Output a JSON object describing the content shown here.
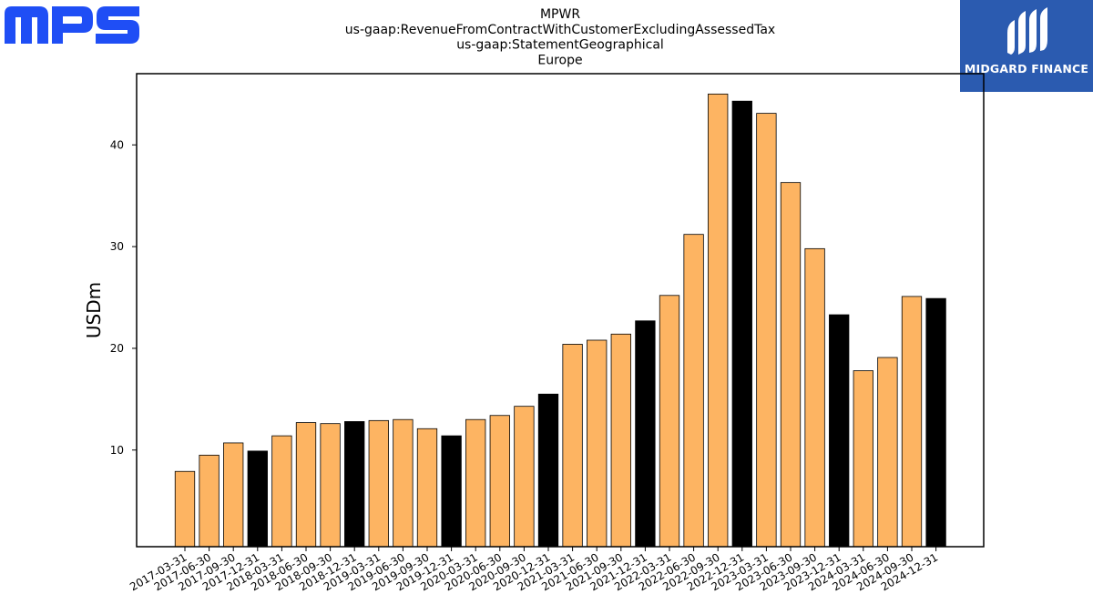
{
  "logos": {
    "left": {
      "text": "MPS",
      "color": "#1f4ef5"
    },
    "right": {
      "text": "MIDGARD FINANCE",
      "background": "#2b5bb0"
    }
  },
  "chart_data": {
    "type": "bar",
    "title_lines": [
      "MPWR",
      "us-gaap:RevenueFromContractWithCustomerExcludingAssessedTax",
      "us-gaap:StatementGeographical",
      "Europe"
    ],
    "xlabel": "",
    "ylabel": "USDm",
    "ylim": [
      0.5,
      47
    ],
    "yticks": [
      10,
      20,
      30,
      40
    ],
    "grid": false,
    "colors": {
      "quarter": "#fdb462",
      "year_end": "#000000",
      "edge": "#000000"
    },
    "categories": [
      "2017-03-31",
      "2017-06-30",
      "2017-09-30",
      "2017-12-31",
      "2018-03-31",
      "2018-06-30",
      "2018-09-30",
      "2018-12-31",
      "2019-03-31",
      "2019-06-30",
      "2019-09-30",
      "2019-12-31",
      "2020-03-31",
      "2020-06-30",
      "2020-09-30",
      "2020-12-31",
      "2021-03-31",
      "2021-06-30",
      "2021-09-30",
      "2021-12-31",
      "2022-03-31",
      "2022-06-30",
      "2022-09-30",
      "2022-12-31",
      "2023-03-31",
      "2023-06-30",
      "2023-09-30",
      "2023-12-31",
      "2024-03-31",
      "2024-06-30",
      "2024-09-30",
      "2024-12-31"
    ],
    "values": [
      7.9,
      9.5,
      10.7,
      9.9,
      11.4,
      12.7,
      12.6,
      12.8,
      12.9,
      13.0,
      12.1,
      11.4,
      13.0,
      13.4,
      14.3,
      15.5,
      20.4,
      20.8,
      21.4,
      22.7,
      25.2,
      31.2,
      45.0,
      44.3,
      43.1,
      36.3,
      29.8,
      23.3,
      17.8,
      19.1,
      25.1,
      24.9
    ],
    "highlight_year_end": true
  }
}
